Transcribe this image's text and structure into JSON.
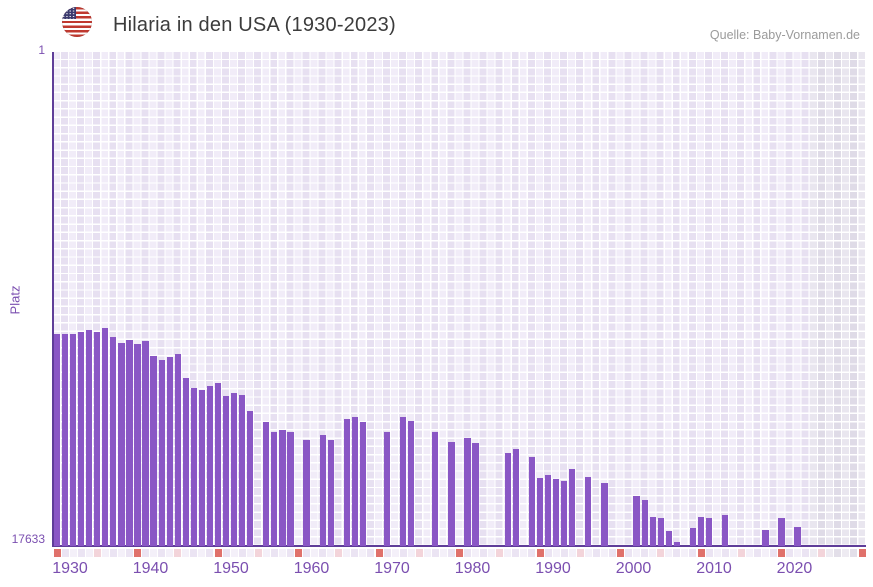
{
  "header": {
    "title": "Hilaria in den USA (1930-2023)",
    "source": "Quelle: Baby-Vornamen.de",
    "flag_icon": "us-flag-circle"
  },
  "chart_data": {
    "type": "bar",
    "title": "Hilaria in den USA (1930-2023)",
    "xlabel": "",
    "ylabel": "Platz",
    "y_axis": {
      "scale": "log",
      "inverted": true,
      "min": 1,
      "max": 17633,
      "tick_top": "1",
      "tick_bottom": "17633"
    },
    "x_axis": {
      "start_year": 1930,
      "end_year": 2030,
      "data_end_year": 2023,
      "tick_labels": [
        "1930",
        "1940",
        "1950",
        "1960",
        "1970",
        "1980",
        "1990",
        "2000",
        "2010",
        "2020"
      ],
      "decade_marker": "red-square",
      "half_decade_marker": "pink-square",
      "future_zone_from": 2024
    },
    "legend": "none",
    "grid": "checkered-lavender",
    "points": [
      [
        1930,
        265
      ],
      [
        1931,
        265
      ],
      [
        1932,
        268
      ],
      [
        1933,
        255
      ],
      [
        1934,
        246
      ],
      [
        1935,
        254
      ],
      [
        1936,
        238
      ],
      [
        1937,
        283
      ],
      [
        1938,
        320
      ],
      [
        1939,
        300
      ],
      [
        1940,
        322
      ],
      [
        1941,
        306
      ],
      [
        1942,
        410
      ],
      [
        1943,
        440
      ],
      [
        1944,
        422
      ],
      [
        1945,
        392
      ],
      [
        1946,
        630
      ],
      [
        1947,
        778
      ],
      [
        1948,
        805
      ],
      [
        1949,
        743
      ],
      [
        1950,
        695
      ],
      [
        1951,
        905
      ],
      [
        1952,
        860
      ],
      [
        1953,
        880
      ],
      [
        1954,
        1220
      ],
      [
        1956,
        1515
      ],
      [
        1957,
        1865
      ],
      [
        1958,
        1780
      ],
      [
        1959,
        1845
      ],
      [
        1961,
        2160
      ],
      [
        1963,
        1970
      ],
      [
        1964,
        2170
      ],
      [
        1966,
        1435
      ],
      [
        1967,
        1385
      ],
      [
        1968,
        1530
      ],
      [
        1971,
        1865
      ],
      [
        1973,
        1385
      ],
      [
        1974,
        1485
      ],
      [
        1977,
        1845
      ],
      [
        1979,
        2245
      ],
      [
        1981,
        2070
      ],
      [
        1982,
        2315
      ],
      [
        1986,
        2810
      ],
      [
        1987,
        2595
      ],
      [
        1989,
        3020
      ],
      [
        1990,
        4625
      ],
      [
        1991,
        4335
      ],
      [
        1992,
        4690
      ],
      [
        1993,
        4855
      ],
      [
        1994,
        3850
      ],
      [
        1996,
        4485
      ],
      [
        1998,
        5080
      ],
      [
        2002,
        6565
      ],
      [
        2003,
        7110
      ],
      [
        2004,
        10000
      ],
      [
        2005,
        10140
      ],
      [
        2006,
        13050
      ],
      [
        2007,
        16200
      ],
      [
        2009,
        12350
      ],
      [
        2010,
        10000
      ],
      [
        2011,
        10220
      ],
      [
        2013,
        9500
      ],
      [
        2018,
        12785
      ],
      [
        2020,
        10140
      ],
      [
        2022,
        12110
      ]
    ],
    "colors": {
      "bar": "#8a57c5",
      "axis_line": "#5f3d99",
      "tick_text": "#7b4fb0",
      "title_text": "#3c3c3c",
      "source_text": "#9b9b9b",
      "grid_line": "#ffffff",
      "plot_col_light": "#f1ecf8",
      "plot_col_dark": "#e7e0f1",
      "future_col_light": "#e9e6ef",
      "future_col_dark": "#dfdbe7",
      "tick_decade": "#e0716b",
      "tick_half_decade": "#f3d4da",
      "tick_pale_light": "#f4f0f9",
      "tick_pale_dark": "#ebe4f3",
      "tick_future_light": "#eeebf2",
      "tick_future_dark": "#e3dfe9"
    }
  }
}
